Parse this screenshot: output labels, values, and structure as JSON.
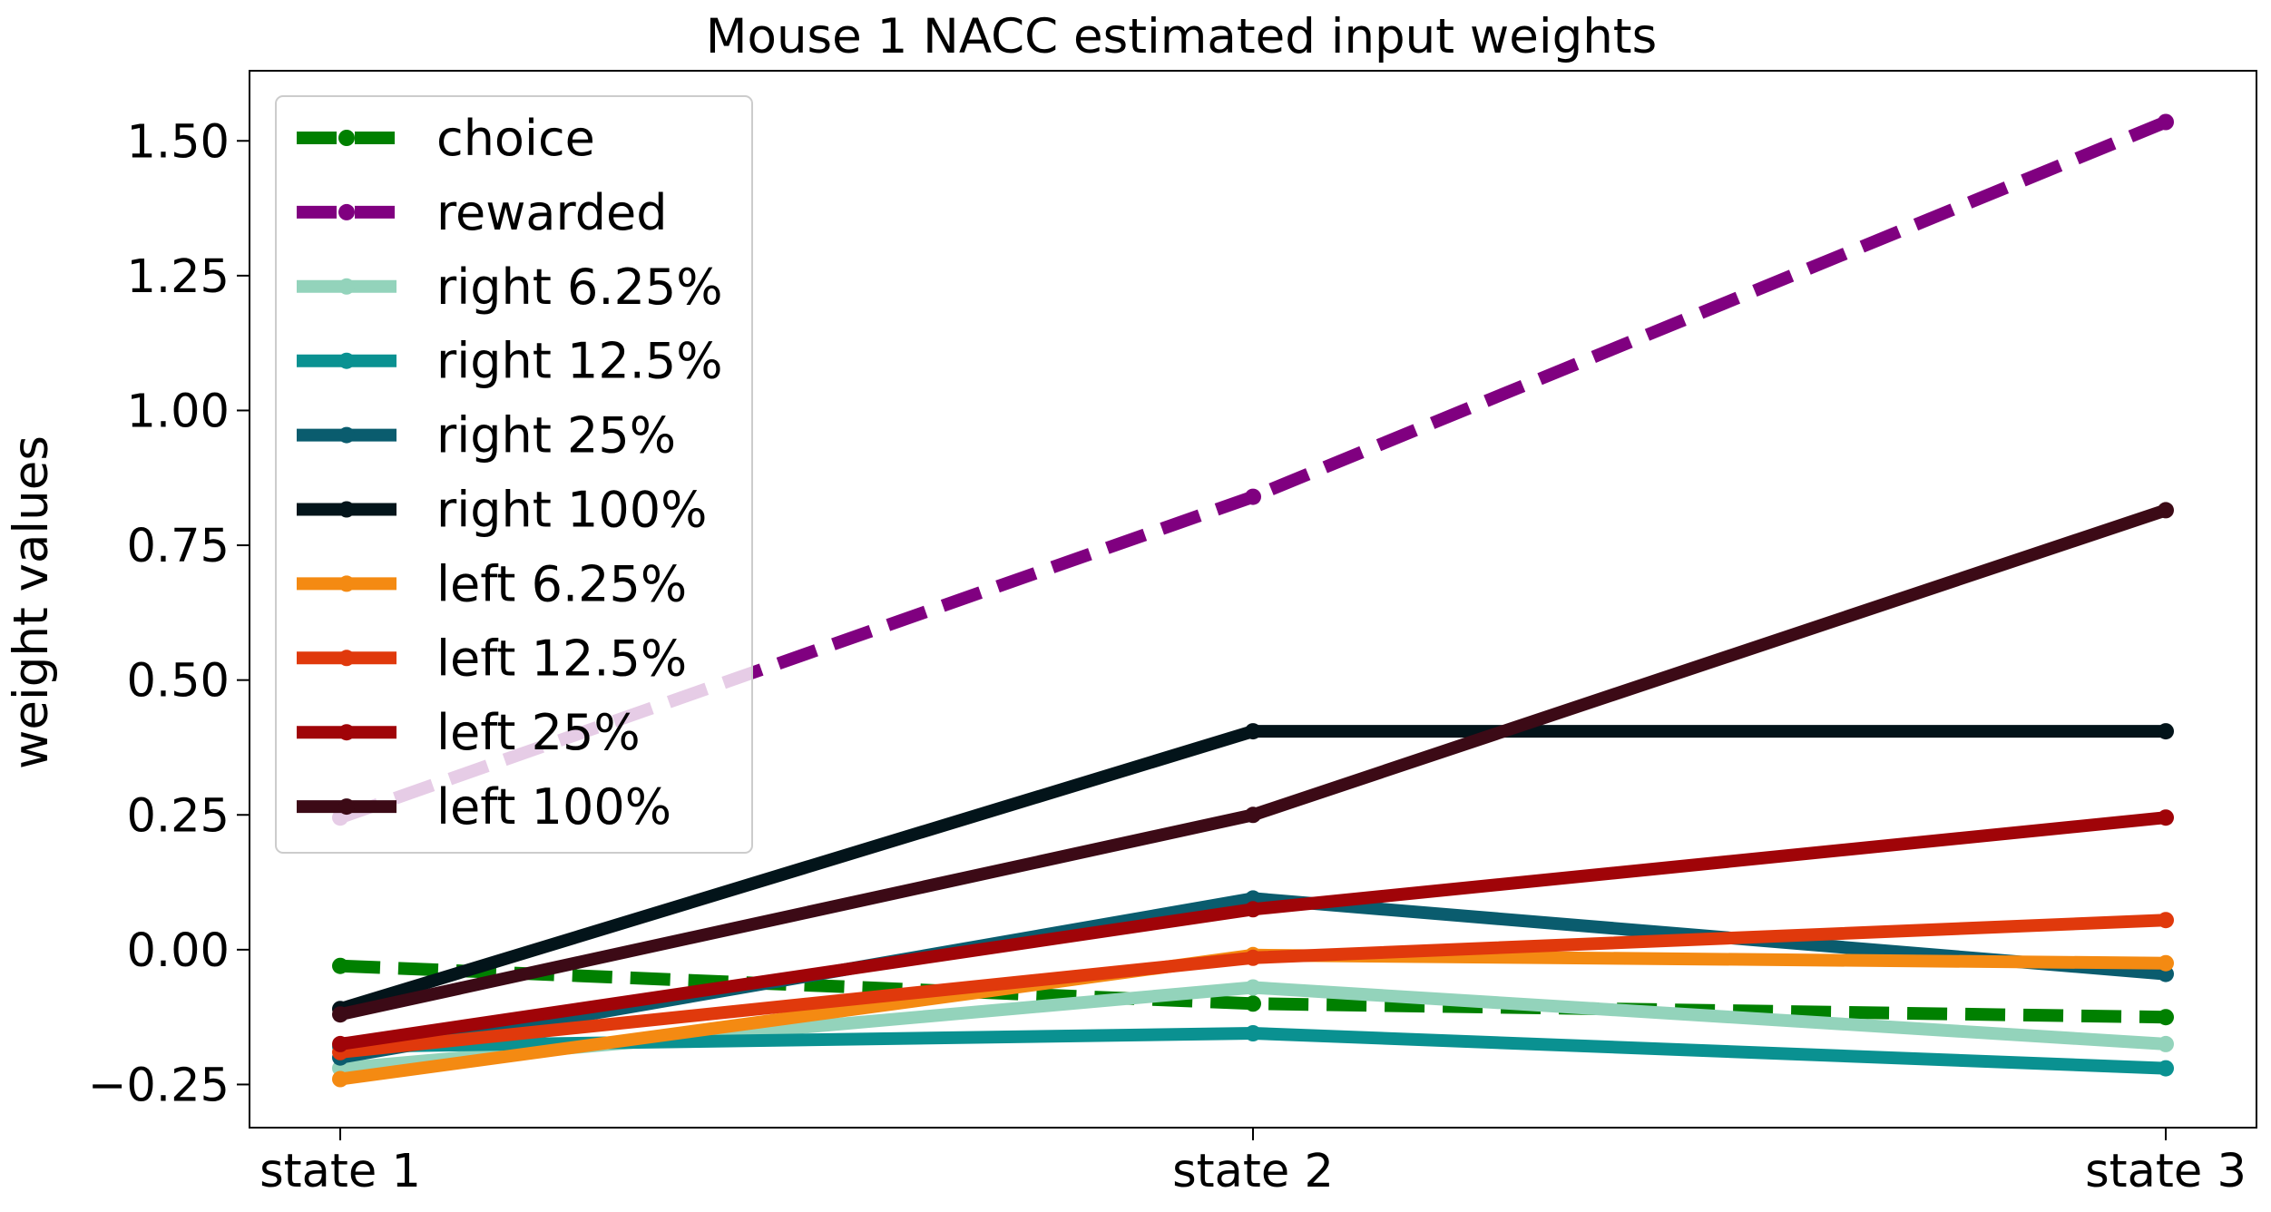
{
  "chart_data": {
    "type": "line",
    "title": "Mouse 1 NACC estimated input weights",
    "xlabel": "",
    "ylabel": "weight values",
    "categories": [
      "state 1",
      "state 2",
      "state 3"
    ],
    "ylim": [
      -0.33,
      1.63
    ],
    "yticks": [
      -0.25,
      0.0,
      0.25,
      0.5,
      0.75,
      1.0,
      1.25,
      1.5
    ],
    "ytick_labels": [
      "−0.25",
      "0.00",
      "0.25",
      "0.50",
      "0.75",
      "1.00",
      "1.25",
      "1.50"
    ],
    "grid": false,
    "legend_position": "top-left",
    "series": [
      {
        "name": "choice",
        "values": [
          -0.03,
          -0.1,
          -0.125
        ],
        "color": "#008000",
        "dashed": true
      },
      {
        "name": "rewarded",
        "values": [
          0.245,
          0.84,
          1.535
        ],
        "color": "#800080",
        "dashed": true
      },
      {
        "name": "right 6.25%",
        "values": [
          -0.22,
          -0.07,
          -0.175
        ],
        "color": "#93d3bb",
        "dashed": false
      },
      {
        "name": "right 12.5%",
        "values": [
          -0.18,
          -0.155,
          -0.22
        ],
        "color": "#0a9191",
        "dashed": false
      },
      {
        "name": "right 25%",
        "values": [
          -0.2,
          0.095,
          -0.045
        ],
        "color": "#0a5c6e",
        "dashed": false
      },
      {
        "name": "right 100%",
        "values": [
          -0.11,
          0.405,
          0.405
        ],
        "color": "#03141a",
        "dashed": false
      },
      {
        "name": "left 6.25%",
        "values": [
          -0.24,
          -0.01,
          -0.025
        ],
        "color": "#f48a12",
        "dashed": false
      },
      {
        "name": "left 12.5%",
        "values": [
          -0.19,
          -0.015,
          0.055
        ],
        "color": "#e0390c",
        "dashed": false
      },
      {
        "name": "left 25%",
        "values": [
          -0.175,
          0.075,
          0.245
        ],
        "color": "#a00408",
        "dashed": false
      },
      {
        "name": "left 100%",
        "values": [
          -0.12,
          0.25,
          0.815
        ],
        "color": "#3c0a16",
        "dashed": false
      }
    ]
  }
}
